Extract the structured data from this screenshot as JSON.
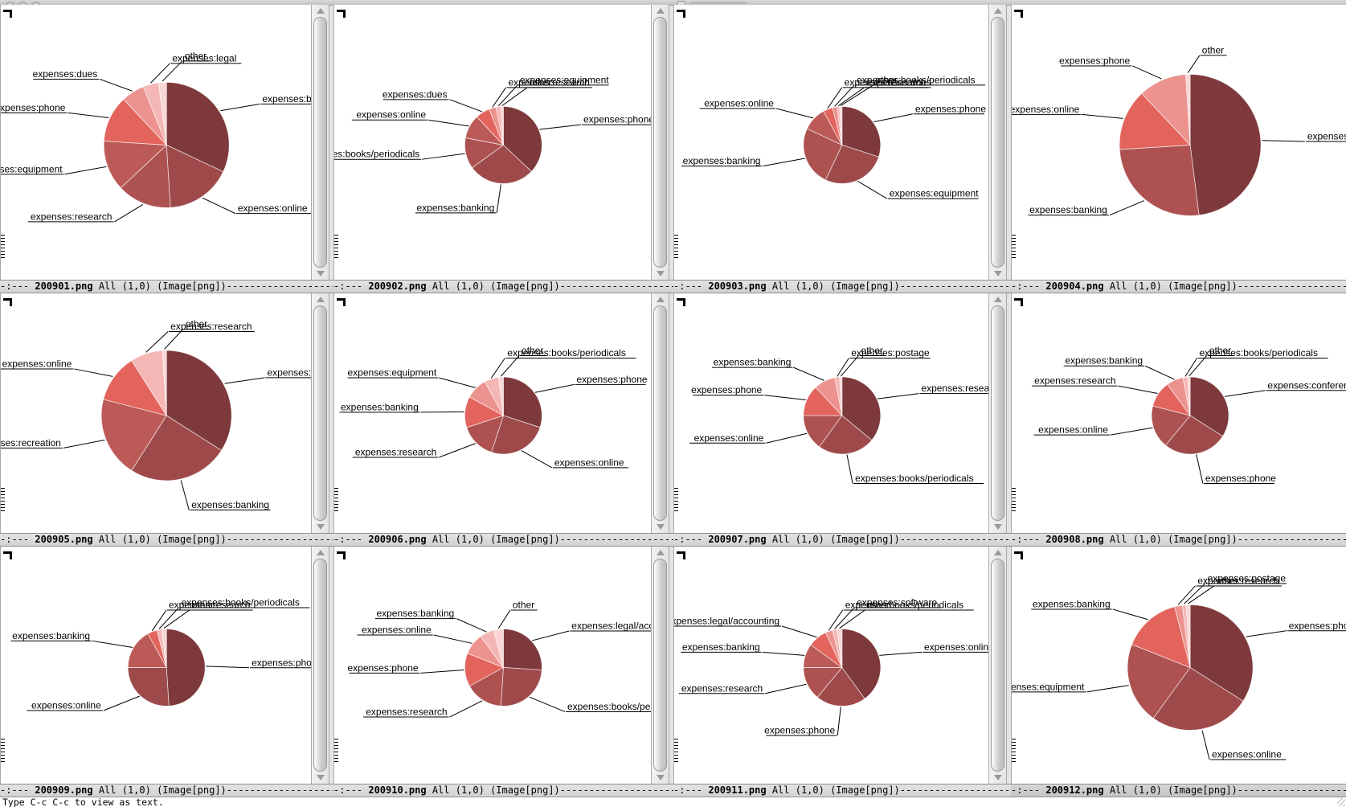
{
  "window": {
    "titlebar": {
      "traffic_light_count": 3
    },
    "minibuffer": {
      "text": "Type C-c C-c to view as text."
    }
  },
  "modeline_format": {
    "prefix": "-:---",
    "position": "All (1,0)",
    "mode": "(Image[png])"
  },
  "palette": [
    "#7d393b",
    "#9e4a4b",
    "#ad5251",
    "#bc5a57",
    "#e2645d",
    "#ec938f",
    "#f4b7b5",
    "#f9d6d5"
  ],
  "chart_data": [
    {
      "type": "pie",
      "title": "200901.png",
      "legend": false,
      "direction": "clockwise",
      "start_angle_deg": 0,
      "slices": [
        {
          "label": "expenses:banking",
          "value": 32
        },
        {
          "label": "expenses:online",
          "value": 17
        },
        {
          "label": "expenses:research",
          "value": 14
        },
        {
          "label": "expenses:equipment",
          "value": 13
        },
        {
          "label": "expenses:phone",
          "value": 12
        },
        {
          "label": "expenses:dues",
          "value": 6
        },
        {
          "label": "expenses:legal",
          "value": 4
        },
        {
          "label": "other",
          "value": 2
        }
      ],
      "radius_px": 78
    },
    {
      "type": "pie",
      "title": "200902.png",
      "legend": false,
      "direction": "clockwise",
      "start_angle_deg": 0,
      "slices": [
        {
          "label": "expenses:phone",
          "value": 37
        },
        {
          "label": "expenses:banking",
          "value": 28
        },
        {
          "label": "expenses:books/periodicals",
          "value": 13
        },
        {
          "label": "expenses:online",
          "value": 10
        },
        {
          "label": "expenses:dues",
          "value": 6
        },
        {
          "label": "expenses:research",
          "value": 3
        },
        {
          "label": "expenses:equipment",
          "value": 2
        },
        {
          "label": "other",
          "value": 1
        }
      ],
      "radius_px": 48
    },
    {
      "type": "pie",
      "title": "200903.png",
      "legend": false,
      "direction": "clockwise",
      "start_angle_deg": 0,
      "slices": [
        {
          "label": "expenses:phone",
          "value": 30
        },
        {
          "label": "expenses:equipment",
          "value": 27
        },
        {
          "label": "expenses:banking",
          "value": 25
        },
        {
          "label": "expenses:online",
          "value": 10
        },
        {
          "label": "expenses:research",
          "value": 4
        },
        {
          "label": "expenses:books/periodicals",
          "value": 2
        },
        {
          "label": "expenses:dues",
          "value": 1
        },
        {
          "label": "other",
          "value": 1
        }
      ],
      "radius_px": 48
    },
    {
      "type": "pie",
      "title": "200904.png",
      "legend": false,
      "direction": "clockwise",
      "start_angle_deg": 0,
      "slices": [
        {
          "label": "expenses:research",
          "value": 48
        },
        {
          "label": "expenses:banking",
          "value": 26
        },
        {
          "label": "expenses:online",
          "value": 14
        },
        {
          "label": "expenses:phone",
          "value": 11
        },
        {
          "label": "other",
          "value": 1
        }
      ],
      "radius_px": 88
    },
    {
      "type": "pie",
      "title": "200905.png",
      "legend": false,
      "direction": "clockwise",
      "start_angle_deg": 0,
      "slices": [
        {
          "label": "expenses:phone",
          "value": 34
        },
        {
          "label": "expenses:banking",
          "value": 25
        },
        {
          "label": "expenses:recreation",
          "value": 20
        },
        {
          "label": "expenses:online",
          "value": 12
        },
        {
          "label": "expenses:research",
          "value": 8
        },
        {
          "label": "other",
          "value": 1
        }
      ],
      "radius_px": 81
    },
    {
      "type": "pie",
      "title": "200906.png",
      "legend": false,
      "direction": "clockwise",
      "start_angle_deg": 0,
      "slices": [
        {
          "label": "expenses:phone",
          "value": 30
        },
        {
          "label": "expenses:online",
          "value": 25
        },
        {
          "label": "expenses:research",
          "value": 15
        },
        {
          "label": "expenses:banking",
          "value": 13
        },
        {
          "label": "expenses:equipment",
          "value": 9
        },
        {
          "label": "expenses:books/periodicals",
          "value": 6
        },
        {
          "label": "other",
          "value": 2
        }
      ],
      "radius_px": 48
    },
    {
      "type": "pie",
      "title": "200907.png",
      "legend": false,
      "direction": "clockwise",
      "start_angle_deg": 0,
      "slices": [
        {
          "label": "expenses:research",
          "value": 36
        },
        {
          "label": "expenses:books/periodicals",
          "value": 24
        },
        {
          "label": "expenses:online",
          "value": 15
        },
        {
          "label": "expenses:phone",
          "value": 13
        },
        {
          "label": "expenses:banking",
          "value": 9
        },
        {
          "label": "expenses:postage",
          "value": 2
        },
        {
          "label": "other",
          "value": 1
        }
      ],
      "radius_px": 48
    },
    {
      "type": "pie",
      "title": "200908.png",
      "legend": false,
      "direction": "clockwise",
      "start_angle_deg": 0,
      "slices": [
        {
          "label": "expenses:conferences",
          "value": 34
        },
        {
          "label": "expenses:phone",
          "value": 27
        },
        {
          "label": "expenses:online",
          "value": 18
        },
        {
          "label": "expenses:research",
          "value": 11
        },
        {
          "label": "expenses:banking",
          "value": 7
        },
        {
          "label": "expenses:books/periodicals",
          "value": 2
        },
        {
          "label": "other",
          "value": 1
        }
      ],
      "radius_px": 48
    },
    {
      "type": "pie",
      "title": "200909.png",
      "legend": false,
      "direction": "clockwise",
      "start_angle_deg": 0,
      "slices": [
        {
          "label": "expenses:phone",
          "value": 49
        },
        {
          "label": "expenses:online",
          "value": 26
        },
        {
          "label": "expenses:banking",
          "value": 17
        },
        {
          "label": "expenses:research",
          "value": 4
        },
        {
          "label": "expenses:books/periodicals",
          "value": 2
        },
        {
          "label": "other",
          "value": 2
        }
      ],
      "radius_px": 48
    },
    {
      "type": "pie",
      "title": "200910.png",
      "legend": false,
      "direction": "clockwise",
      "start_angle_deg": 0,
      "slices": [
        {
          "label": "expenses:legal/accounting",
          "value": 26
        },
        {
          "label": "expenses:books/periodicals",
          "value": 25
        },
        {
          "label": "expenses:research",
          "value": 16
        },
        {
          "label": "expenses:phone",
          "value": 14
        },
        {
          "label": "expenses:online",
          "value": 9
        },
        {
          "label": "expenses:banking",
          "value": 6
        },
        {
          "label": "other",
          "value": 4
        }
      ],
      "radius_px": 48
    },
    {
      "type": "pie",
      "title": "200911.png",
      "legend": false,
      "direction": "clockwise",
      "start_angle_deg": 0,
      "slices": [
        {
          "label": "expenses:online",
          "value": 40
        },
        {
          "label": "expenses:phone",
          "value": 21
        },
        {
          "label": "expenses:research",
          "value": 14
        },
        {
          "label": "expenses:banking",
          "value": 10
        },
        {
          "label": "expenses:legal/accounting",
          "value": 8
        },
        {
          "label": "expenses:books/periodicals",
          "value": 3
        },
        {
          "label": "expenses:software",
          "value": 2
        },
        {
          "label": "other",
          "value": 2
        }
      ],
      "radius_px": 48
    },
    {
      "type": "pie",
      "title": "200912.png",
      "legend": false,
      "direction": "clockwise",
      "start_angle_deg": 0,
      "active": true,
      "slices": [
        {
          "label": "expenses:phone",
          "value": 34
        },
        {
          "label": "expenses:online",
          "value": 26
        },
        {
          "label": "expenses:equipment",
          "value": 21
        },
        {
          "label": "expenses:banking",
          "value": 15
        },
        {
          "label": "expenses:research",
          "value": 2
        },
        {
          "label": "expenses:postage",
          "value": 1
        },
        {
          "label": "other",
          "value": 1
        }
      ],
      "radius_px": 78
    }
  ]
}
